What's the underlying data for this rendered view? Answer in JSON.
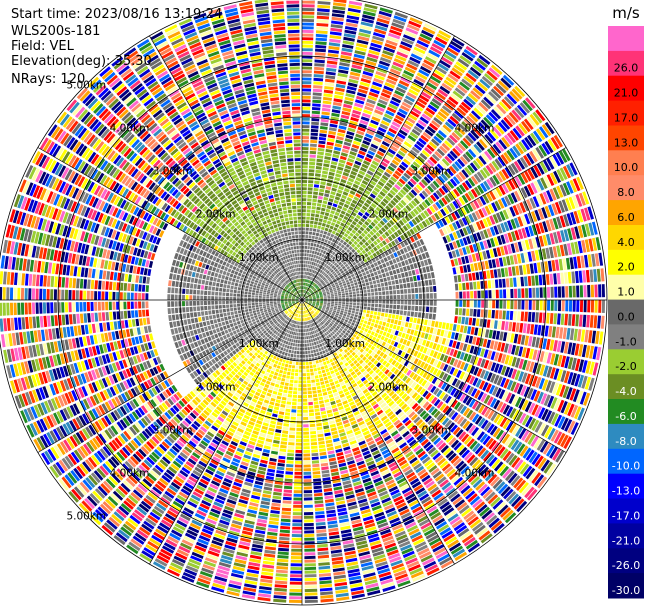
{
  "metadata": {
    "start_time": "Start time: 2023/08/16 13:19:24",
    "site": "WLS200s-181",
    "field": "Field: VEL",
    "elevation": "Elevation(deg): 35.30",
    "nrays": "NRays: 120"
  },
  "chart_data": {
    "type": "heatmap",
    "projection": "polar PPI (plan position indicator)",
    "field": "VEL",
    "unit": "m/s",
    "n_rays": 120,
    "elevation_deg": 35.3,
    "max_range_km": 5.0,
    "range_rings_km": [
      1.0,
      2.0,
      3.0,
      4.0,
      5.0
    ],
    "range_ring_labels": [
      {
        "text": "1.00km",
        "range_km": 1.0,
        "azimuth_deg": 315
      },
      {
        "text": "1.00km",
        "range_km": 1.0,
        "azimuth_deg": 45
      },
      {
        "text": "1.00km",
        "range_km": 1.0,
        "azimuth_deg": 225
      },
      {
        "text": "1.00km",
        "range_km": 1.0,
        "azimuth_deg": 135
      },
      {
        "text": "2.00km",
        "range_km": 2.0,
        "azimuth_deg": 315
      },
      {
        "text": "2.00km",
        "range_km": 2.0,
        "azimuth_deg": 45
      },
      {
        "text": "2.00km",
        "range_km": 2.0,
        "azimuth_deg": 225
      },
      {
        "text": "2.00km",
        "range_km": 2.0,
        "azimuth_deg": 135
      },
      {
        "text": "3.00km",
        "range_km": 3.0,
        "azimuth_deg": 315
      },
      {
        "text": "3.00km",
        "range_km": 3.0,
        "azimuth_deg": 45
      },
      {
        "text": "3.00km",
        "range_km": 3.0,
        "azimuth_deg": 225
      },
      {
        "text": "3.00km",
        "range_km": 3.0,
        "azimuth_deg": 135
      },
      {
        "text": "4.00km",
        "range_km": 4.0,
        "azimuth_deg": 315
      },
      {
        "text": "4.00km",
        "range_km": 4.0,
        "azimuth_deg": 45
      },
      {
        "text": "4.00km",
        "range_km": 4.0,
        "azimuth_deg": 225
      },
      {
        "text": "4.00km",
        "range_km": 4.0,
        "azimuth_deg": 135
      },
      {
        "text": "5.00km",
        "range_km": 5.0,
        "azimuth_deg": 315
      },
      {
        "text": "5.00km",
        "range_km": 5.0,
        "azimuth_deg": 225
      }
    ],
    "spokes_deg": [
      0,
      30,
      60,
      90,
      120,
      150,
      180,
      210,
      240,
      270,
      300,
      330
    ],
    "colorbar": {
      "unit_label": "m/s",
      "bands": [
        {
          "color": "#000066",
          "label": "-30.0"
        },
        {
          "color": "#000080",
          "label": "-26.0"
        },
        {
          "color": "#0000A0",
          "label": "-21.0"
        },
        {
          "color": "#0000CC",
          "label": "-17.0"
        },
        {
          "color": "#0000FF",
          "label": "-13.0"
        },
        {
          "color": "#0066FF",
          "label": "-10.0"
        },
        {
          "color": "#2E8BC0",
          "label": "-8.0"
        },
        {
          "color": "#228B22",
          "label": "-6.0"
        },
        {
          "color": "#6B8E23",
          "label": "-4.0"
        },
        {
          "color": "#9ACD32",
          "label": "-2.0"
        },
        {
          "color": "#808080",
          "label": "-1.0"
        },
        {
          "color": "#696969",
          "label": "0.0"
        },
        {
          "color": "#FFFFAA",
          "label": "1.0"
        },
        {
          "color": "#FFFF00",
          "label": "2.0"
        },
        {
          "color": "#FFD700",
          "label": "4.0"
        },
        {
          "color": "#FFA500",
          "label": "6.0"
        },
        {
          "color": "#FF8C69",
          "label": "8.0"
        },
        {
          "color": "#FF7F50",
          "label": "10.0"
        },
        {
          "color": "#FF4500",
          "label": "13.0"
        },
        {
          "color": "#FF2000",
          "label": "17.0"
        },
        {
          "color": "#FF0000",
          "label": "21.0"
        },
        {
          "color": "#FF3377",
          "label": "26.0"
        },
        {
          "color": "#FF66CC",
          "label": ""
        }
      ]
    },
    "field_pattern": [
      {
        "range_km": [
          0.0,
          0.35
        ],
        "azimuth_deg": [
          0,
          360
        ],
        "velocity_ms": [
          -6,
          -4
        ],
        "note_class": "near-zero-negative"
      },
      {
        "range_km": [
          0.0,
          0.5
        ],
        "azimuth_deg": [
          120,
          240
        ],
        "velocity_ms": [
          1,
          4
        ],
        "note_class": "positive"
      },
      {
        "range_km": [
          0.35,
          2.2
        ],
        "azimuth_deg": [
          0,
          360
        ],
        "velocity_ms": [
          -1,
          0
        ],
        "note_class": "near-zero"
      },
      {
        "range_km": [
          1.2,
          2.5
        ],
        "azimuth_deg": [
          300,
          60
        ],
        "velocity_ms": [
          -4,
          -2
        ],
        "note_class": "negative"
      },
      {
        "range_km": [
          1.0,
          2.6
        ],
        "azimuth_deg": [
          100,
          230
        ],
        "velocity_ms": [
          1,
          4
        ],
        "note_class": "positive"
      },
      {
        "range_km": [
          2.5,
          5.0
        ],
        "azimuth_deg": [
          0,
          360
        ],
        "velocity_ms": [
          -30,
          26
        ],
        "note_class": "noise"
      }
    ]
  }
}
